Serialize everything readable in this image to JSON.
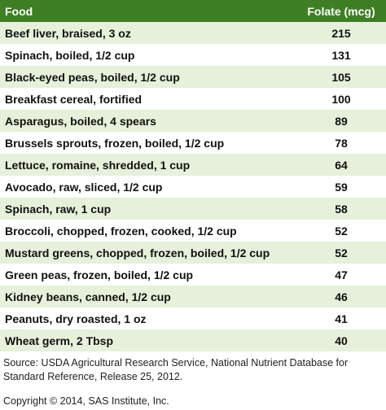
{
  "table": {
    "columns": [
      "Food",
      "Folate (mcg)"
    ],
    "rows": [
      [
        "Beef liver, braised, 3 oz",
        215
      ],
      [
        "Spinach, boiled, 1/2 cup",
        131
      ],
      [
        "Black-eyed peas, boiled, 1/2 cup",
        105
      ],
      [
        "Breakfast cereal, fortified",
        100
      ],
      [
        "Asparagus, boiled, 4 spears",
        89
      ],
      [
        "Brussels sprouts, frozen, boiled, 1/2 cup",
        78
      ],
      [
        "Lettuce, romaine, shredded, 1 cup",
        64
      ],
      [
        "Avocado, raw, sliced, 1/2 cup",
        59
      ],
      [
        "Spinach, raw, 1 cup",
        58
      ],
      [
        "Broccoli, chopped, frozen, cooked, 1/2 cup",
        52
      ],
      [
        "Mustard greens, chopped, frozen, boiled, 1/2 cup",
        52
      ],
      [
        "Green peas, frozen, boiled, 1/2 cup",
        47
      ],
      [
        "Kidney beans, canned, 1/2 cup",
        46
      ],
      [
        "Peanuts, dry roasted, 1 oz",
        41
      ],
      [
        "Wheat germ, 2 Tbsp",
        40
      ]
    ]
  },
  "source": "Source: USDA Agricultural Research Service, National Nutrient Database for Standard Reference, Release 25, 2012.",
  "copyright": "Copyright © 2014, SAS Institute, Inc."
}
